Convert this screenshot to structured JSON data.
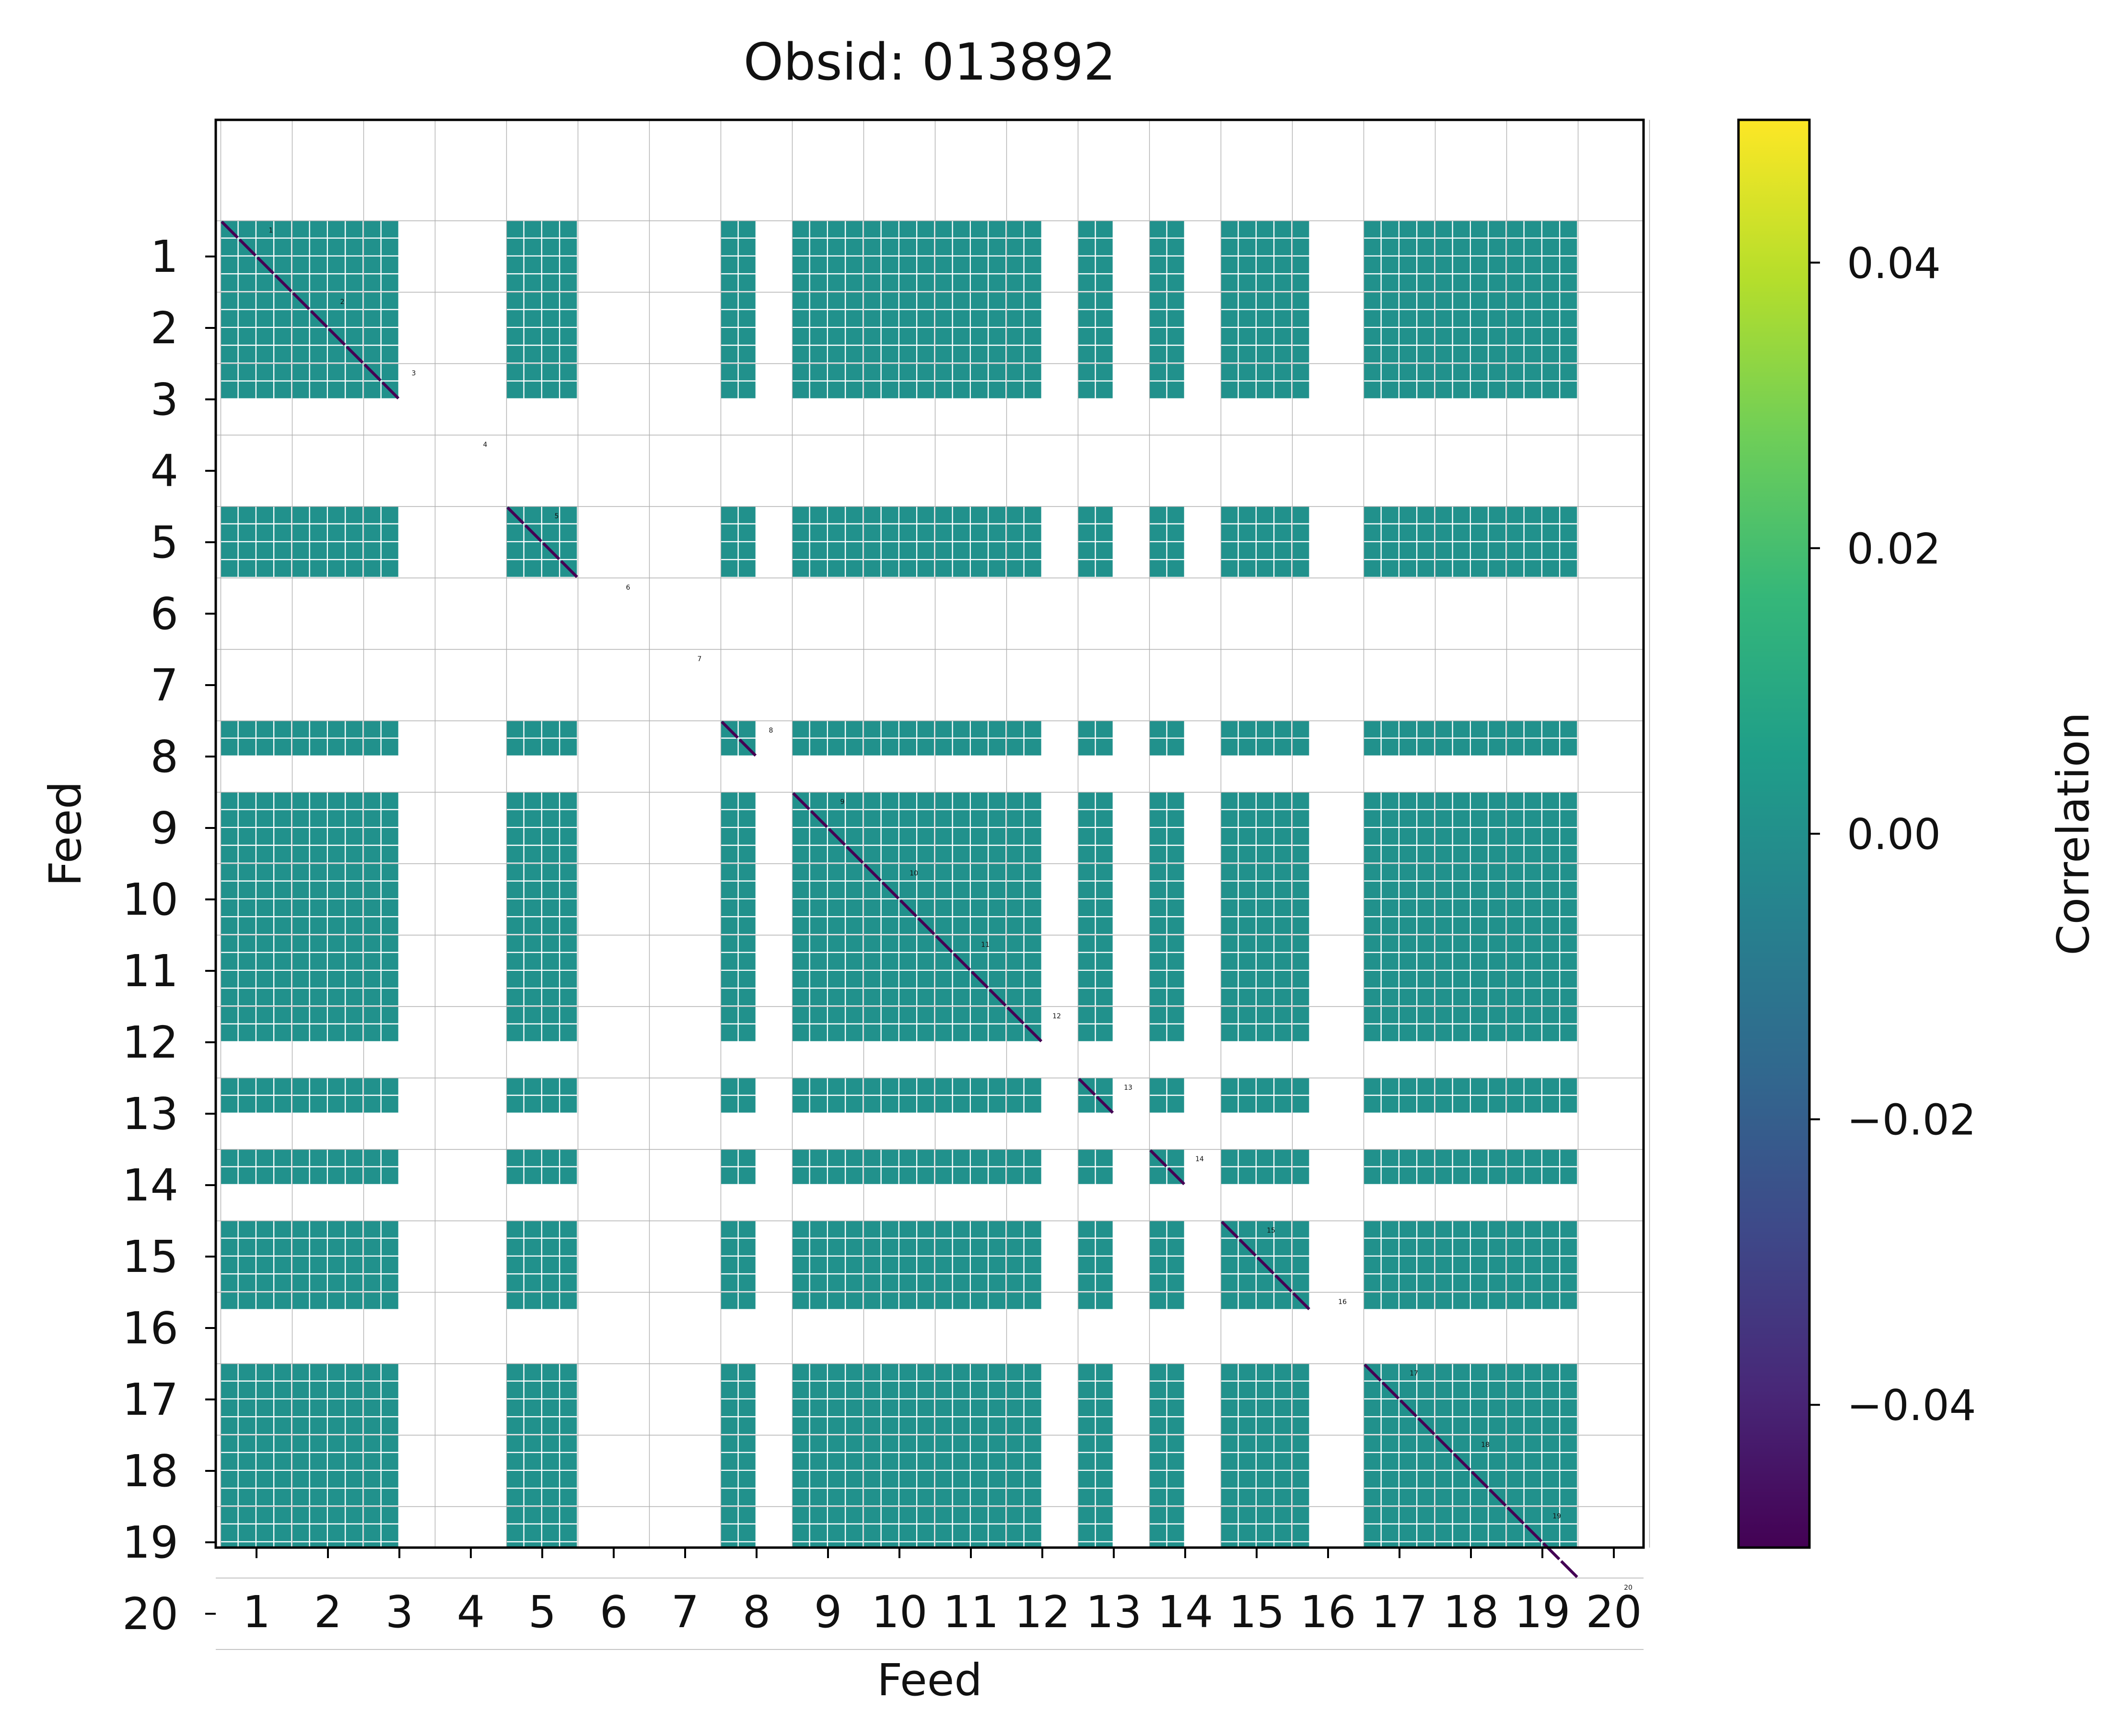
{
  "chart_data": {
    "type": "heatmap",
    "title": "Obsid: 013892",
    "xlabel": "Feed",
    "ylabel": "Feed",
    "x_tick_labels": [
      "1",
      "2",
      "3",
      "4",
      "5",
      "6",
      "7",
      "8",
      "9",
      "10",
      "11",
      "12",
      "13",
      "14",
      "15",
      "16",
      "17",
      "18",
      "19",
      "20"
    ],
    "y_tick_labels": [
      "1",
      "2",
      "3",
      "4",
      "5",
      "6",
      "7",
      "8",
      "9",
      "10",
      "11",
      "12",
      "13",
      "14",
      "15",
      "16",
      "17",
      "18",
      "19",
      "20"
    ],
    "feeds": [
      1,
      2,
      3,
      4,
      5,
      6,
      7,
      8,
      9,
      10,
      11,
      12,
      13,
      14,
      15,
      16,
      17,
      18,
      19,
      20
    ],
    "blocks_per_feed": 4,
    "feed_valid_blocks": {
      "1": [
        true,
        true,
        true,
        true
      ],
      "2": [
        true,
        true,
        true,
        true
      ],
      "3": [
        true,
        true,
        false,
        false
      ],
      "4": [
        false,
        false,
        false,
        false
      ],
      "5": [
        true,
        true,
        true,
        true
      ],
      "6": [
        false,
        false,
        false,
        false
      ],
      "7": [
        false,
        false,
        false,
        false
      ],
      "8": [
        true,
        true,
        false,
        false
      ],
      "9": [
        true,
        true,
        true,
        true
      ],
      "10": [
        true,
        true,
        true,
        true
      ],
      "11": [
        true,
        true,
        true,
        true
      ],
      "12": [
        true,
        true,
        false,
        false
      ],
      "13": [
        true,
        true,
        false,
        false
      ],
      "14": [
        true,
        true,
        false,
        false
      ],
      "15": [
        true,
        true,
        true,
        true
      ],
      "16": [
        true,
        false,
        false,
        false
      ],
      "17": [
        true,
        true,
        true,
        true
      ],
      "18": [
        true,
        true,
        true,
        true
      ],
      "19": [
        true,
        true,
        true,
        true
      ],
      "20": [
        false,
        false,
        false,
        false
      ]
    },
    "offdiag_correlation": 0.0,
    "diagonal_correlation": -0.05,
    "diagonal_labels": [
      "1",
      "2",
      "3",
      "4",
      "5",
      "6",
      "7",
      "8",
      "9",
      "10",
      "11",
      "12",
      "13",
      "14",
      "15",
      "16",
      "17",
      "18",
      "19",
      "20"
    ],
    "colorbar": {
      "label": "Correlation",
      "colormap": "viridis",
      "range": [
        -0.05,
        0.05
      ],
      "ticks": [
        -0.04,
        -0.02,
        0.0,
        0.02,
        0.04
      ],
      "tick_labels": [
        "−0.04",
        "−0.02",
        "0.00",
        "0.02",
        "0.04"
      ]
    },
    "grid": true
  },
  "colors": {
    "cell": "#21918c",
    "diagonal": "#440154",
    "grid": "#b0b0b0",
    "frame": "#000000",
    "viridis_stops": [
      "#440154",
      "#482878",
      "#3e4989",
      "#31688e",
      "#26828e",
      "#1f9e89",
      "#35b779",
      "#6ece58",
      "#b5de2b",
      "#fde725"
    ]
  }
}
